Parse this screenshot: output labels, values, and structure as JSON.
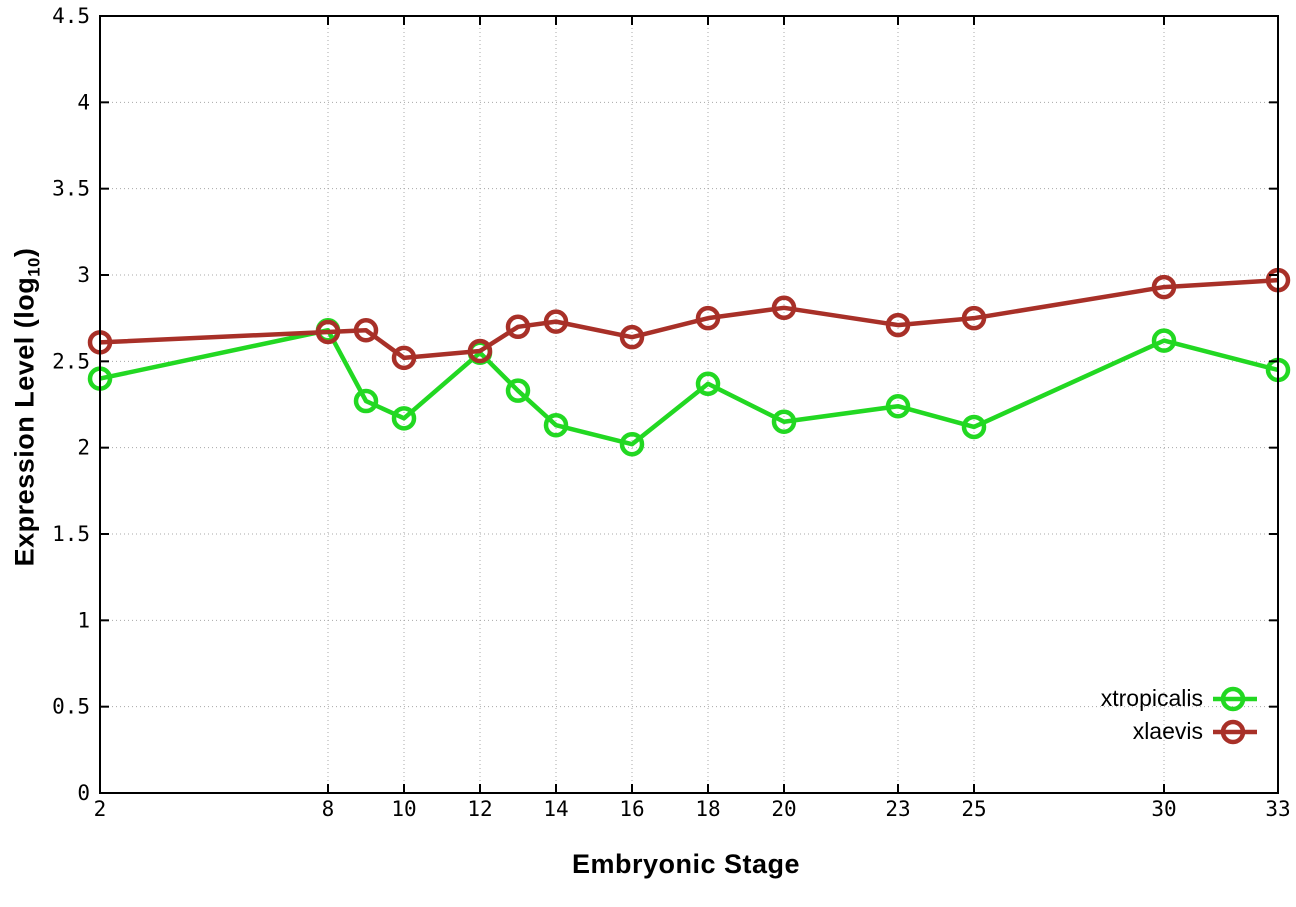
{
  "chart_data": {
    "type": "line",
    "title": "",
    "xlabel": "Embryonic Stage",
    "ylabel": "Expression Level (log10)",
    "ylabel_main": "Expression Level (log",
    "ylabel_sub": "10",
    "ylabel_close": ")",
    "xlim": [
      2,
      33
    ],
    "ylim": [
      0,
      4.5
    ],
    "xticks": [
      2,
      8,
      10,
      12,
      14,
      16,
      18,
      20,
      23,
      25,
      30,
      33
    ],
    "yticks": [
      0,
      0.5,
      1,
      1.5,
      2,
      2.5,
      3,
      3.5,
      4,
      4.5
    ],
    "grid": true,
    "grid_style": "dotted",
    "legend_position": "inside-bottom-right",
    "marker": "open-circle",
    "x": [
      2,
      8,
      9,
      10,
      12,
      13,
      14,
      16,
      18,
      20,
      23,
      25,
      30,
      33
    ],
    "series": [
      {
        "name": "xtropicalis",
        "color": "#22d822",
        "values": [
          2.4,
          2.68,
          2.27,
          2.17,
          2.55,
          2.33,
          2.13,
          2.02,
          2.37,
          2.15,
          2.24,
          2.12,
          2.62,
          2.45
        ]
      },
      {
        "name": "xlaevis",
        "color": "#a83028",
        "values": [
          2.61,
          2.67,
          2.68,
          2.52,
          2.56,
          2.7,
          2.73,
          2.64,
          2.75,
          2.81,
          2.71,
          2.75,
          2.93,
          2.97
        ]
      }
    ],
    "colors": {
      "grid": "#a8a8a8",
      "axis": "#000000",
      "background": "#ffffff",
      "tick_label": "#000000"
    }
  }
}
